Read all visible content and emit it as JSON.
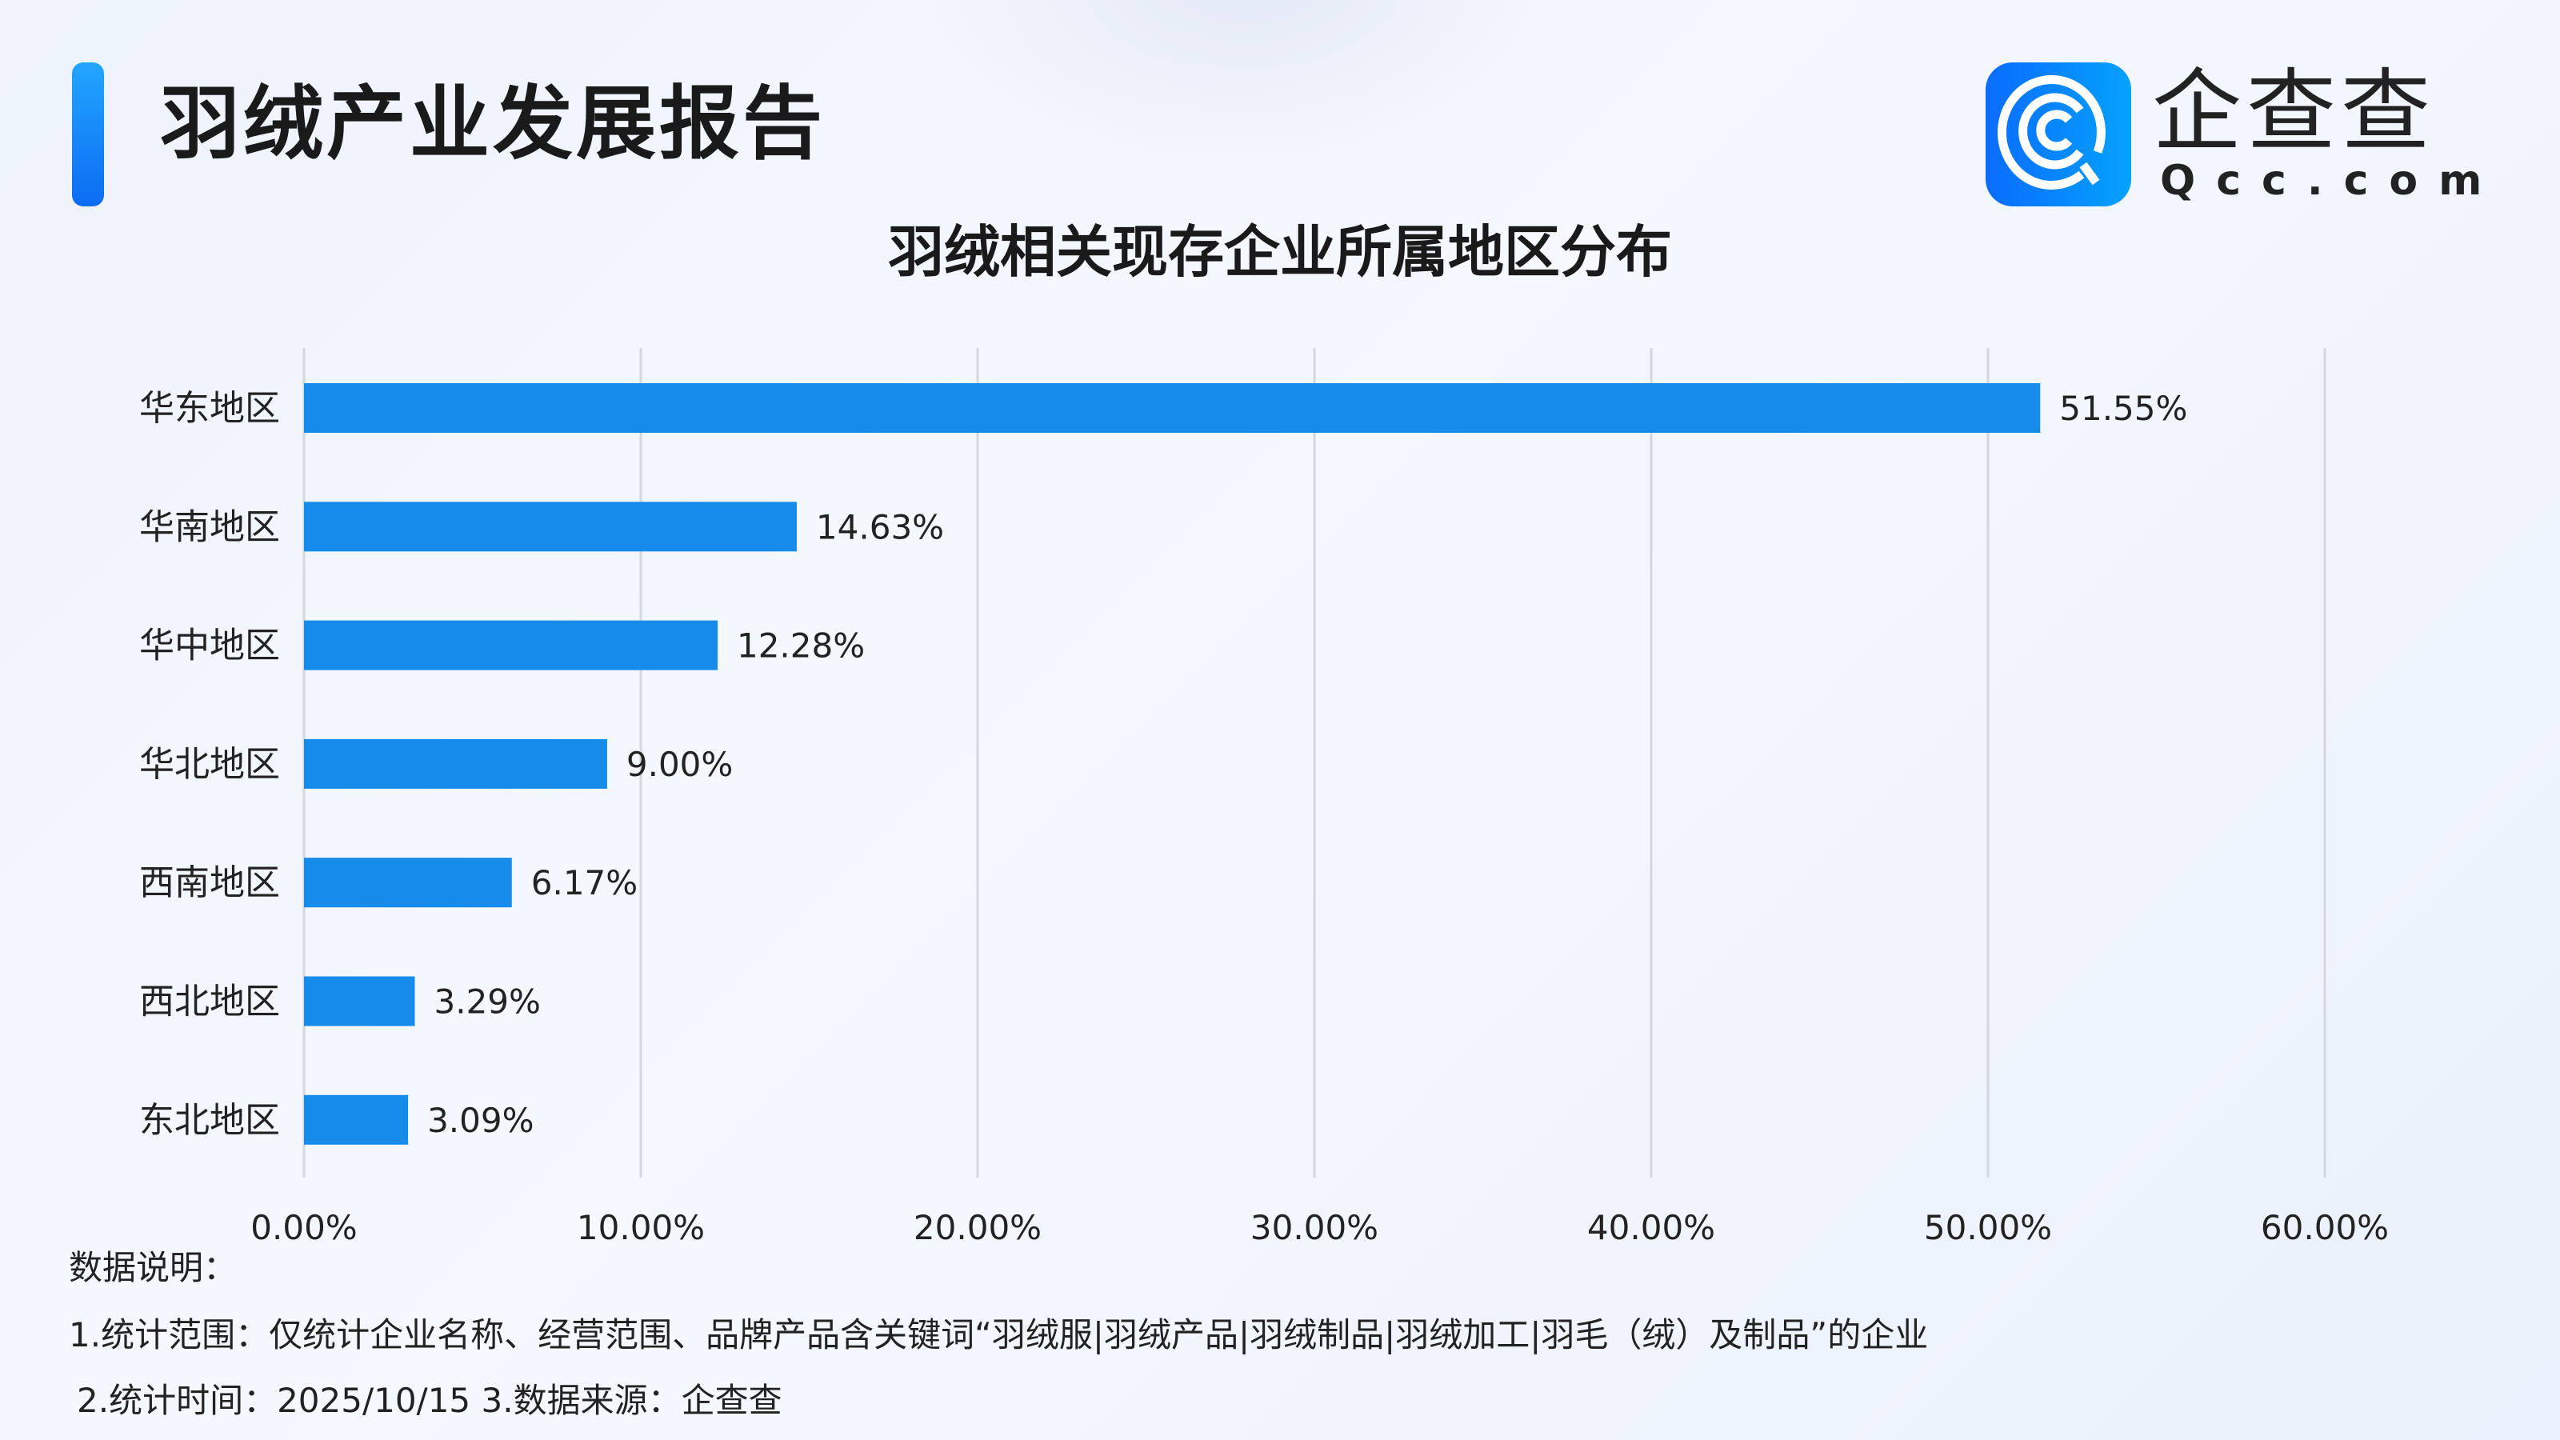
{
  "header": {
    "title": "羽绒产业发展报告",
    "logo_text": "企查查",
    "logo_domain": "Qcc.com",
    "logo_icon": "qcc-magnifier-logo-icon"
  },
  "chart_data": {
    "type": "bar",
    "orientation": "horizontal",
    "title": "羽绒相关现存企业所属地区分布",
    "categories": [
      "华东地区",
      "华南地区",
      "华中地区",
      "华北地区",
      "西南地区",
      "西北地区",
      "东北地区"
    ],
    "values": [
      51.55,
      14.63,
      12.28,
      9.0,
      6.17,
      3.29,
      3.09
    ],
    "data_labels": [
      "51.55%",
      "14.63%",
      "12.28%",
      "9.00%",
      "6.17%",
      "3.29%",
      "3.09%"
    ],
    "xlim": [
      0,
      60
    ],
    "x_ticks": [
      "0.00%",
      "10.00%",
      "20.00%",
      "30.00%",
      "40.00%",
      "50.00%",
      "60.00%"
    ],
    "grid": "vertical",
    "bar_color": "#168bea",
    "grid_color": "#d4d7dd"
  },
  "notes": {
    "heading": "数据说明：",
    "line1": "1.统计范围：仅统计企业名称、经营范围、品牌产品含关键词“羽绒服|羽绒产品|羽绒制品|羽绒加工|羽毛（绒）及制品”的企业",
    "line2": "2.统计时间：2025/10/15 3.数据来源：企查查"
  }
}
